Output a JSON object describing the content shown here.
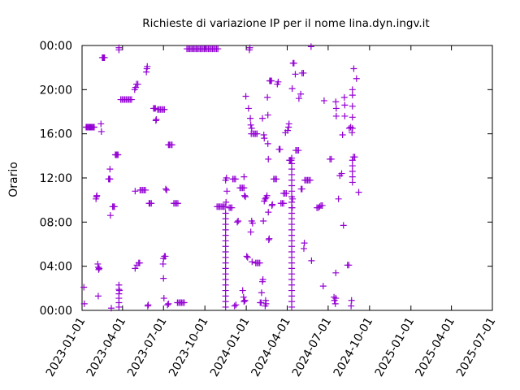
{
  "chart_data": {
    "type": "scatter",
    "title": "Richieste di variazione IP per il nome lina.dyn.ingv.it",
    "ylabel": "Orario",
    "xlabel": "",
    "x_ticks": [
      "2023-01-01",
      "2023-04-01",
      "2023-07-01",
      "2023-10-01",
      "2024-01-01",
      "2024-04-01",
      "2024-07-01",
      "2024-10-01",
      "2025-01-01",
      "2025-04-01",
      "2025-07-01"
    ],
    "y_ticks": [
      "00:00",
      "04:00",
      "08:00",
      "12:00",
      "16:00",
      "20:00",
      "00:00"
    ],
    "x_range": [
      "2023-01-01",
      "2025-07-01"
    ],
    "y_range_hours": [
      0,
      24
    ],
    "grid": false,
    "marker": "plus",
    "color": "#9400d3",
    "points": [
      [
        "2023-01-05",
        2.1
      ],
      [
        "2023-01-06",
        0.6
      ],
      [
        "2023-01-10",
        16.6
      ],
      [
        "2023-01-12",
        16.6
      ],
      [
        "2023-01-14",
        16.6
      ],
      [
        "2023-01-16",
        16.6
      ],
      [
        "2023-01-18",
        16.6
      ],
      [
        "2023-01-20",
        16.6
      ],
      [
        "2023-01-22",
        16.6
      ],
      [
        "2023-01-24",
        16.6
      ],
      [
        "2023-01-26",
        16.6
      ],
      [
        "2023-01-28",
        16.6
      ],
      [
        "2023-02-01",
        10.1
      ],
      [
        "2023-02-02",
        10.3
      ],
      [
        "2023-02-03",
        10.4
      ],
      [
        "2023-02-05",
        4.2
      ],
      [
        "2023-02-06",
        3.9
      ],
      [
        "2023-02-07",
        3.7
      ],
      [
        "2023-02-08",
        3.8
      ],
      [
        "2023-02-06",
        1.3
      ],
      [
        "2023-02-12",
        16.9
      ],
      [
        "2023-02-13",
        16.2
      ],
      [
        "2023-02-15",
        22.9
      ],
      [
        "2023-02-16",
        22.9
      ],
      [
        "2023-02-17",
        22.9
      ],
      [
        "2023-02-18",
        22.9
      ],
      [
        "2023-02-19",
        22.9
      ],
      [
        "2023-02-20",
        22.9
      ],
      [
        "2023-03-01",
        11.9
      ],
      [
        "2023-03-02",
        11.9
      ],
      [
        "2023-03-03",
        11.9
      ],
      [
        "2023-03-04",
        11.9
      ],
      [
        "2023-03-04",
        12.8
      ],
      [
        "2023-03-05",
        8.6
      ],
      [
        "2023-03-07",
        0.2
      ],
      [
        "2023-03-10",
        9.4
      ],
      [
        "2023-03-12",
        9.4
      ],
      [
        "2023-03-14",
        9.4
      ],
      [
        "2023-03-16",
        14.1
      ],
      [
        "2023-03-18",
        14.1
      ],
      [
        "2023-03-20",
        14.1
      ],
      [
        "2023-03-22",
        14.1
      ],
      [
        "2023-03-24",
        23.6
      ],
      [
        "2023-03-24",
        23.8
      ],
      [
        "2023-03-24",
        2.3
      ],
      [
        "2023-03-24",
        1.9
      ],
      [
        "2023-03-24",
        1.5
      ],
      [
        "2023-03-24",
        1.1
      ],
      [
        "2023-03-24",
        0.7
      ],
      [
        "2023-03-24",
        0.3
      ],
      [
        "2023-03-25",
        1.8
      ],
      [
        "2023-03-28",
        19.1
      ],
      [
        "2023-03-31",
        19.1
      ],
      [
        "2023-04-03",
        19.1
      ],
      [
        "2023-04-06",
        19.1
      ],
      [
        "2023-04-09",
        19.1
      ],
      [
        "2023-04-12",
        19.1
      ],
      [
        "2023-04-15",
        19.1
      ],
      [
        "2023-04-18",
        19.1
      ],
      [
        "2023-04-21",
        19.1
      ],
      [
        "2023-04-28",
        20.0
      ],
      [
        "2023-04-30",
        20.2
      ],
      [
        "2023-05-02",
        20.5
      ],
      [
        "2023-05-05",
        20.5
      ],
      [
        "2023-04-29",
        3.8
      ],
      [
        "2023-05-03",
        4.1
      ],
      [
        "2023-05-07",
        4.3
      ],
      [
        "2023-05-09",
        4.3
      ],
      [
        "2023-04-29",
        10.8
      ],
      [
        "2023-05-10",
        10.9
      ],
      [
        "2023-05-13",
        10.9
      ],
      [
        "2023-05-16",
        10.9
      ],
      [
        "2023-05-19",
        10.9
      ],
      [
        "2023-05-22",
        10.9
      ],
      [
        "2023-05-24",
        21.6
      ],
      [
        "2023-05-25",
        21.9
      ],
      [
        "2023-05-26",
        22.1
      ],
      [
        "2023-05-27",
        0.4
      ],
      [
        "2023-05-28",
        0.5
      ],
      [
        "2023-05-30",
        9.7
      ],
      [
        "2023-06-01",
        9.7
      ],
      [
        "2023-06-04",
        9.7
      ],
      [
        "2023-06-09",
        18.3
      ],
      [
        "2023-06-11",
        18.3
      ],
      [
        "2023-06-13",
        18.3
      ],
      [
        "2023-06-14",
        17.2
      ],
      [
        "2023-06-15",
        17.3
      ],
      [
        "2023-06-18",
        18.2
      ],
      [
        "2023-06-21",
        18.2
      ],
      [
        "2023-06-24",
        18.2
      ],
      [
        "2023-06-27",
        18.2
      ],
      [
        "2023-06-30",
        18.2
      ],
      [
        "2023-07-03",
        18.2
      ],
      [
        "2023-06-30",
        4.2
      ],
      [
        "2023-07-01",
        2.9
      ],
      [
        "2023-07-02",
        1.1
      ],
      [
        "2023-07-01",
        4.7
      ],
      [
        "2023-07-03",
        4.9
      ],
      [
        "2023-07-05",
        4.9
      ],
      [
        "2023-07-06",
        11.0
      ],
      [
        "2023-07-08",
        10.9
      ],
      [
        "2023-07-10",
        0.5
      ],
      [
        "2023-07-12",
        0.6
      ],
      [
        "2023-07-12",
        15.0
      ],
      [
        "2023-07-14",
        15.0
      ],
      [
        "2023-07-17",
        15.0
      ],
      [
        "2023-07-20",
        15.0
      ],
      [
        "2023-07-24",
        9.7
      ],
      [
        "2023-07-27",
        9.7
      ],
      [
        "2023-07-30",
        9.7
      ],
      [
        "2023-08-02",
        9.7
      ],
      [
        "2023-08-01",
        0.7
      ],
      [
        "2023-08-04",
        0.7
      ],
      [
        "2023-08-07",
        0.7
      ],
      [
        "2023-08-10",
        0.7
      ],
      [
        "2023-08-13",
        0.7
      ],
      [
        "2023-08-16",
        0.7
      ],
      [
        "2023-08-22",
        23.7
      ],
      [
        "2023-08-25",
        23.7
      ],
      [
        "2023-08-28",
        23.7
      ],
      [
        "2023-08-31",
        23.7
      ],
      [
        "2023-09-03",
        23.7
      ],
      [
        "2023-09-06",
        23.7
      ],
      [
        "2023-09-09",
        23.7
      ],
      [
        "2023-09-12",
        23.7
      ],
      [
        "2023-09-15",
        23.7
      ],
      [
        "2023-09-18",
        23.7
      ],
      [
        "2023-09-21",
        23.7
      ],
      [
        "2023-09-24",
        23.7
      ],
      [
        "2023-09-27",
        23.7
      ],
      [
        "2023-09-30",
        23.7
      ],
      [
        "2023-10-03",
        23.7
      ],
      [
        "2023-10-06",
        23.7
      ],
      [
        "2023-10-09",
        23.7
      ],
      [
        "2023-10-12",
        23.7
      ],
      [
        "2023-10-15",
        23.7
      ],
      [
        "2023-10-18",
        23.7
      ],
      [
        "2023-10-21",
        23.7
      ],
      [
        "2023-10-24",
        23.7
      ],
      [
        "2023-10-27",
        23.7
      ],
      [
        "2023-10-30",
        23.7
      ],
      [
        "2023-10-28",
        9.4
      ],
      [
        "2023-10-31",
        9.4
      ],
      [
        "2023-11-03",
        9.4
      ],
      [
        "2023-11-06",
        9.4
      ],
      [
        "2023-11-09",
        9.4
      ],
      [
        "2023-11-12",
        9.4
      ],
      [
        "2023-11-15",
        9.4
      ],
      [
        "2023-11-16",
        11.8
      ],
      [
        "2023-11-18",
        12.0
      ],
      [
        "2023-11-16",
        0.3
      ],
      [
        "2023-11-16",
        0.8
      ],
      [
        "2023-11-16",
        1.3
      ],
      [
        "2023-11-16",
        1.8
      ],
      [
        "2023-11-16",
        2.3
      ],
      [
        "2023-11-16",
        2.8
      ],
      [
        "2023-11-16",
        3.3
      ],
      [
        "2023-11-16",
        3.8
      ],
      [
        "2023-11-16",
        4.3
      ],
      [
        "2023-11-16",
        4.8
      ],
      [
        "2023-11-16",
        5.3
      ],
      [
        "2023-11-16",
        5.8
      ],
      [
        "2023-11-16",
        6.3
      ],
      [
        "2023-11-16",
        6.8
      ],
      [
        "2023-11-16",
        7.3
      ],
      [
        "2023-11-16",
        7.8
      ],
      [
        "2023-11-16",
        8.3
      ],
      [
        "2023-11-16",
        8.8
      ],
      [
        "2023-11-17",
        9.8
      ],
      [
        "2023-11-19",
        10.8
      ],
      [
        "2023-11-24",
        9.3
      ],
      [
        "2023-11-27",
        9.3
      ],
      [
        "2023-11-30",
        9.3
      ],
      [
        "2023-12-02",
        11.9
      ],
      [
        "2023-12-05",
        11.9
      ],
      [
        "2023-12-08",
        11.9
      ],
      [
        "2023-12-06",
        0.4
      ],
      [
        "2023-12-09",
        0.5
      ],
      [
        "2023-12-12",
        8.0
      ],
      [
        "2023-12-14",
        8.1
      ],
      [
        "2023-12-18",
        11.1
      ],
      [
        "2023-12-21",
        11.1
      ],
      [
        "2023-12-24",
        11.1
      ],
      [
        "2023-12-27",
        11.1
      ],
      [
        "2023-12-24",
        1.8
      ],
      [
        "2023-12-26",
        1.2
      ],
      [
        "2023-12-27",
        0.8
      ],
      [
        "2023-12-29",
        0.9
      ],
      [
        "2023-12-27",
        12.1
      ],
      [
        "2023-12-28",
        10.4
      ],
      [
        "2023-12-30",
        10.3
      ],
      [
        "2023-12-31",
        19.4
      ],
      [
        "2024-01-02",
        4.9
      ],
      [
        "2024-01-04",
        4.8
      ],
      [
        "2024-01-06",
        18.3
      ],
      [
        "2024-01-08",
        23.6
      ],
      [
        "2024-01-09",
        23.8
      ],
      [
        "2024-01-10",
        17.4
      ],
      [
        "2024-01-11",
        16.8
      ],
      [
        "2024-01-12",
        16.0
      ],
      [
        "2024-01-13",
        16.5
      ],
      [
        "2024-01-14",
        4.4
      ],
      [
        "2024-01-11",
        7.1
      ],
      [
        "2024-01-13",
        8.1
      ],
      [
        "2024-01-15",
        7.9
      ],
      [
        "2024-01-16",
        16.0
      ],
      [
        "2024-01-19",
        16.0
      ],
      [
        "2024-01-22",
        16.0
      ],
      [
        "2024-01-25",
        16.0
      ],
      [
        "2024-01-22",
        4.3
      ],
      [
        "2024-01-25",
        4.3
      ],
      [
        "2024-01-28",
        4.3
      ],
      [
        "2024-01-31",
        4.3
      ],
      [
        "2024-02-01",
        0.7
      ],
      [
        "2024-02-03",
        0.7
      ],
      [
        "2024-02-04",
        1.6
      ],
      [
        "2024-02-06",
        2.6
      ],
      [
        "2024-02-07",
        2.8
      ],
      [
        "2024-02-06",
        17.4
      ],
      [
        "2024-02-09",
        15.9
      ],
      [
        "2024-02-10",
        15.6
      ],
      [
        "2024-02-08",
        8.1
      ],
      [
        "2024-02-10",
        9.9
      ],
      [
        "2024-02-12",
        10.1
      ],
      [
        "2024-02-14",
        10.2
      ],
      [
        "2024-02-16",
        10.4
      ],
      [
        "2024-02-12",
        0.4
      ],
      [
        "2024-02-13",
        0.9
      ],
      [
        "2024-02-14",
        0.6
      ],
      [
        "2024-02-17",
        19.3
      ],
      [
        "2024-02-18",
        17.7
      ],
      [
        "2024-02-18",
        15.1
      ],
      [
        "2024-02-19",
        13.7
      ],
      [
        "2024-02-19",
        8.9
      ],
      [
        "2024-02-20",
        6.4
      ],
      [
        "2024-02-21",
        6.5
      ],
      [
        "2024-02-22",
        20.8
      ],
      [
        "2024-02-24",
        20.8
      ],
      [
        "2024-02-26",
        20.8
      ],
      [
        "2024-02-27",
        9.5
      ],
      [
        "2024-02-28",
        9.6
      ],
      [
        "2024-03-02",
        11.9
      ],
      [
        "2024-03-05",
        11.9
      ],
      [
        "2024-03-08",
        11.9
      ],
      [
        "2024-03-10",
        20.5
      ],
      [
        "2024-03-12",
        20.7
      ],
      [
        "2024-03-14",
        14.6
      ],
      [
        "2024-03-16",
        14.6
      ],
      [
        "2024-03-18",
        9.7
      ],
      [
        "2024-03-21",
        9.7
      ],
      [
        "2024-03-24",
        9.7
      ],
      [
        "2024-03-24",
        10.6
      ],
      [
        "2024-03-27",
        10.6
      ],
      [
        "2024-03-30",
        10.6
      ],
      [
        "2024-03-28",
        16.1
      ],
      [
        "2024-04-02",
        16.3
      ],
      [
        "2024-04-04",
        16.6
      ],
      [
        "2024-04-05",
        16.9
      ],
      [
        "2024-04-06",
        13.6
      ],
      [
        "2024-04-08",
        13.6
      ],
      [
        "2024-04-10",
        13.6
      ],
      [
        "2024-04-11",
        0.3
      ],
      [
        "2024-04-11",
        0.8
      ],
      [
        "2024-04-11",
        1.3
      ],
      [
        "2024-04-11",
        1.8
      ],
      [
        "2024-04-11",
        2.3
      ],
      [
        "2024-04-11",
        2.8
      ],
      [
        "2024-04-11",
        3.3
      ],
      [
        "2024-04-11",
        3.8
      ],
      [
        "2024-04-11",
        4.3
      ],
      [
        "2024-04-11",
        4.8
      ],
      [
        "2024-04-11",
        5.3
      ],
      [
        "2024-04-11",
        5.8
      ],
      [
        "2024-04-11",
        6.3
      ],
      [
        "2024-04-11",
        6.8
      ],
      [
        "2024-04-11",
        7.3
      ],
      [
        "2024-04-11",
        7.8
      ],
      [
        "2024-04-11",
        8.3
      ],
      [
        "2024-04-11",
        8.8
      ],
      [
        "2024-04-11",
        9.3
      ],
      [
        "2024-04-11",
        9.8
      ],
      [
        "2024-04-11",
        10.3
      ],
      [
        "2024-04-11",
        10.8
      ],
      [
        "2024-04-11",
        11.3
      ],
      [
        "2024-04-11",
        11.8
      ],
      [
        "2024-04-11",
        12.3
      ],
      [
        "2024-04-11",
        12.8
      ],
      [
        "2024-04-11",
        13.3
      ],
      [
        "2024-04-11",
        13.8
      ],
      [
        "2024-04-12",
        9.3
      ],
      [
        "2024-04-13",
        10.1
      ],
      [
        "2024-04-12",
        20.1
      ],
      [
        "2024-04-14",
        22.4
      ],
      [
        "2024-04-16",
        22.4
      ],
      [
        "2024-04-19",
        21.4
      ],
      [
        "2024-04-20",
        14.5
      ],
      [
        "2024-04-23",
        14.5
      ],
      [
        "2024-04-26",
        14.5
      ],
      [
        "2024-04-27",
        19.2
      ],
      [
        "2024-05-01",
        19.6
      ],
      [
        "2024-05-02",
        11.0
      ],
      [
        "2024-05-04",
        11.0
      ],
      [
        "2024-05-04",
        21.5
      ],
      [
        "2024-05-07",
        21.5
      ],
      [
        "2024-05-08",
        5.6
      ],
      [
        "2024-05-09",
        6.1
      ],
      [
        "2024-05-10",
        11.8
      ],
      [
        "2024-05-13",
        11.8
      ],
      [
        "2024-05-16",
        11.8
      ],
      [
        "2024-05-19",
        11.8
      ],
      [
        "2024-05-22",
        11.8
      ],
      [
        "2024-05-24",
        23.9
      ],
      [
        "2024-05-25",
        4.5
      ],
      [
        "2024-06-06",
        9.3
      ],
      [
        "2024-06-09",
        9.3
      ],
      [
        "2024-06-12",
        9.4
      ],
      [
        "2024-06-15",
        9.5
      ],
      [
        "2024-06-18",
        9.5
      ],
      [
        "2024-06-20",
        2.2
      ],
      [
        "2024-06-22",
        19.0
      ],
      [
        "2024-07-05",
        13.7
      ],
      [
        "2024-07-08",
        13.7
      ],
      [
        "2024-07-14",
        1.2
      ],
      [
        "2024-07-15",
        0.9
      ],
      [
        "2024-07-17",
        0.6
      ],
      [
        "2024-07-18",
        1.1
      ],
      [
        "2024-07-18",
        3.4
      ],
      [
        "2024-07-18",
        18.9
      ],
      [
        "2024-07-19",
        17.6
      ],
      [
        "2024-07-19",
        18.3
      ],
      [
        "2024-07-24",
        10.1
      ],
      [
        "2024-07-27",
        12.2
      ],
      [
        "2024-07-31",
        12.4
      ],
      [
        "2024-08-02",
        15.9
      ],
      [
        "2024-08-04",
        7.7
      ],
      [
        "2024-08-06",
        19.3
      ],
      [
        "2024-08-07",
        18.6
      ],
      [
        "2024-08-07",
        17.6
      ],
      [
        "2024-08-13",
        4.1
      ],
      [
        "2024-08-16",
        4.1
      ],
      [
        "2024-08-17",
        16.5
      ],
      [
        "2024-08-20",
        16.6
      ],
      [
        "2024-08-23",
        16.1
      ],
      [
        "2024-08-21",
        0.4
      ],
      [
        "2024-08-22",
        0.9
      ],
      [
        "2024-08-24",
        11.6
      ],
      [
        "2024-08-24",
        12.1
      ],
      [
        "2024-08-24",
        12.6
      ],
      [
        "2024-08-24",
        13.1
      ],
      [
        "2024-08-24",
        13.6
      ],
      [
        "2024-08-24",
        16.5
      ],
      [
        "2024-08-24",
        17.5
      ],
      [
        "2024-08-24",
        18.5
      ],
      [
        "2024-08-24",
        19.5
      ],
      [
        "2024-08-24",
        20.0
      ],
      [
        "2024-08-26",
        13.9
      ],
      [
        "2024-08-29",
        13.9
      ],
      [
        "2024-08-27",
        21.9
      ],
      [
        "2024-09-02",
        21.0
      ],
      [
        "2024-09-07",
        10.7
      ]
    ]
  }
}
